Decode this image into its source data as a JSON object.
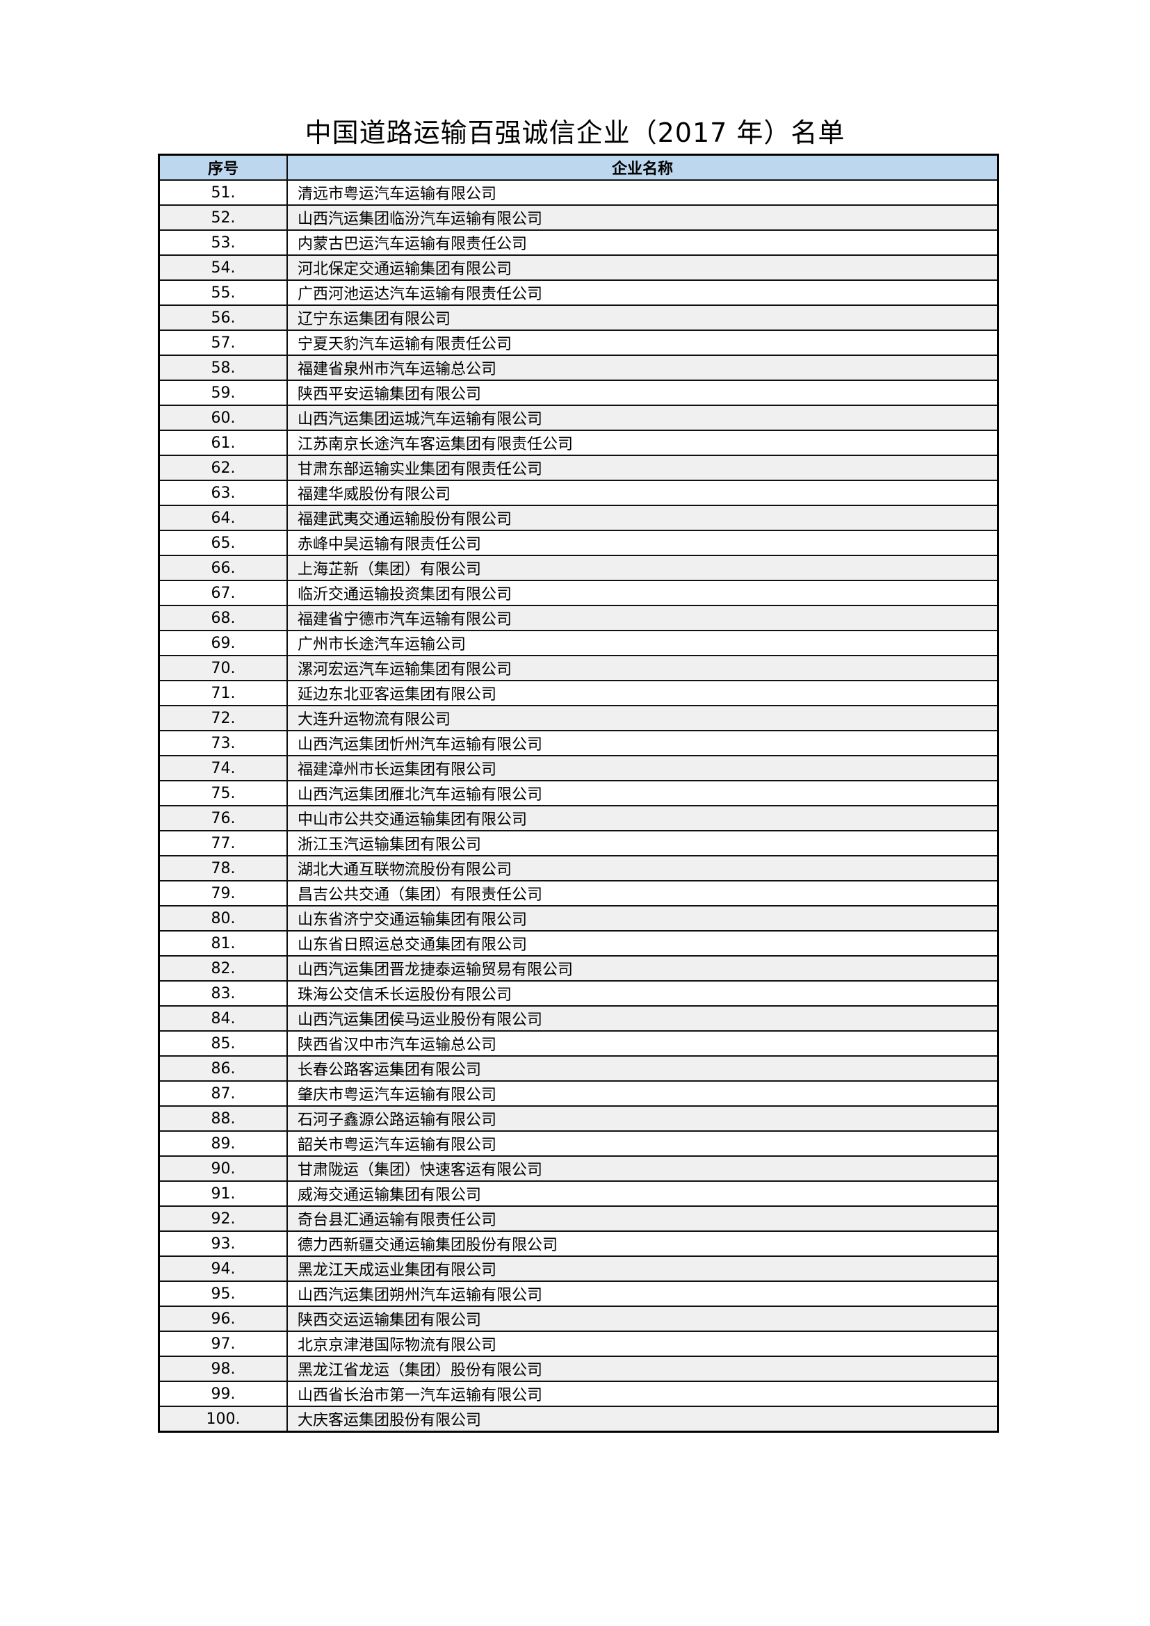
{
  "title": "中国道路运输百强诚信企业（2017 年）名单",
  "table": {
    "headers": [
      "序号",
      "企业名称"
    ],
    "rows": [
      [
        "51.",
        "清远市粤运汽车运输有限公司"
      ],
      [
        "52.",
        "山西汽运集团临汾汽车运输有限公司"
      ],
      [
        "53.",
        "内蒙古巴运汽车运输有限责任公司"
      ],
      [
        "54.",
        "河北保定交通运输集团有限公司"
      ],
      [
        "55.",
        "广西河池运达汽车运输有限责任公司"
      ],
      [
        "56.",
        "辽宁东运集团有限公司"
      ],
      [
        "57.",
        "宁夏天豹汽车运输有限责任公司"
      ],
      [
        "58.",
        "福建省泉州市汽车运输总公司"
      ],
      [
        "59.",
        "陕西平安运输集团有限公司"
      ],
      [
        "60.",
        "山西汽运集团运城汽车运输有限公司"
      ],
      [
        "61.",
        "江苏南京长途汽车客运集团有限责任公司"
      ],
      [
        "62.",
        "甘肃东部运输实业集团有限责任公司"
      ],
      [
        "63.",
        "福建华威股份有限公司"
      ],
      [
        "64.",
        "福建武夷交通运输股份有限公司"
      ],
      [
        "65.",
        "赤峰中昊运输有限责任公司"
      ],
      [
        "66.",
        "上海芷新（集团）有限公司"
      ],
      [
        "67.",
        "临沂交通运输投资集团有限公司"
      ],
      [
        "68.",
        "福建省宁德市汽车运输有限公司"
      ],
      [
        "69.",
        "广州市长途汽车运输公司"
      ],
      [
        "70.",
        "漯河宏运汽车运输集团有限公司"
      ],
      [
        "71.",
        "延边东北亚客运集团有限公司"
      ],
      [
        "72.",
        "大连升运物流有限公司"
      ],
      [
        "73.",
        "山西汽运集团忻州汽车运输有限公司"
      ],
      [
        "74.",
        "福建漳州市长运集团有限公司"
      ],
      [
        "75.",
        "山西汽运集团雁北汽车运输有限公司"
      ],
      [
        "76.",
        "中山市公共交通运输集团有限公司"
      ],
      [
        "77.",
        "浙江玉汽运输集团有限公司"
      ],
      [
        "78.",
        "湖北大通互联物流股份有限公司"
      ],
      [
        "79.",
        "昌吉公共交通（集团）有限责任公司"
      ],
      [
        "80.",
        "山东省济宁交通运输集团有限公司"
      ],
      [
        "81.",
        "山东省日照运总交通集团有限公司"
      ],
      [
        "82.",
        "山西汽运集团晋龙捷泰运输贸易有限公司"
      ],
      [
        "83.",
        "珠海公交信禾长运股份有限公司"
      ],
      [
        "84.",
        "山西汽运集团侯马运业股份有限公司"
      ],
      [
        "85.",
        "陕西省汉中市汽车运输总公司"
      ],
      [
        "86.",
        "长春公路客运集团有限公司"
      ],
      [
        "87.",
        "肇庆市粤运汽车运输有限公司"
      ],
      [
        "88.",
        "石河子鑫源公路运输有限公司"
      ],
      [
        "89.",
        "韶关市粤运汽车运输有限公司"
      ],
      [
        "90.",
        "甘肃陇运（集团）快速客运有限公司"
      ],
      [
        "91.",
        "威海交通运输集团有限公司"
      ],
      [
        "92.",
        "奇台县汇通运输有限责任公司"
      ],
      [
        "93.",
        "德力西新疆交通运输集团股份有限公司"
      ],
      [
        "94.",
        "黑龙江天成运业集团有限公司"
      ],
      [
        "95.",
        "山西汽运集团朔州汽车运输有限公司"
      ],
      [
        "96.",
        "陕西交运运输集团有限公司"
      ],
      [
        "97.",
        "北京京津港国际物流有限公司"
      ],
      [
        "98.",
        "黑龙江省龙运（集团）股份有限公司"
      ],
      [
        "99.",
        "山西省长治市第一汽车运输有限公司"
      ],
      [
        "100.",
        "大庆客运集团股份有限公司"
      ]
    ]
  },
  "colors": {
    "header_bg": "#bdd7ee",
    "alt_row_bg": "#f0f0f0",
    "border": "#000000"
  }
}
